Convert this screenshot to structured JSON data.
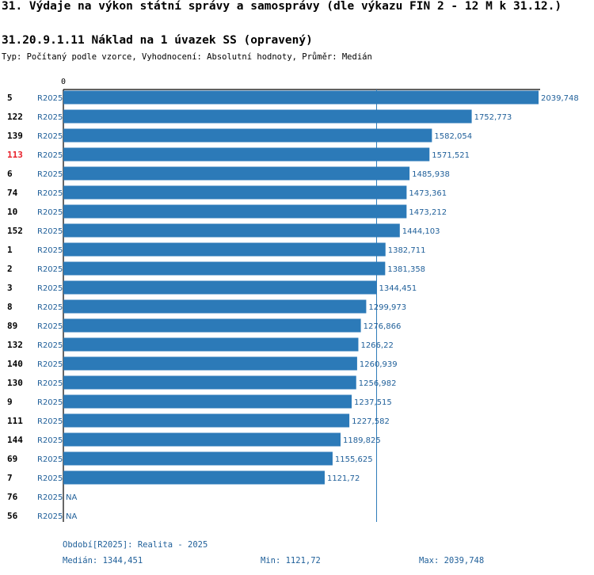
{
  "header": {
    "title": "31. Výdaje na výkon státní správy a samosprávy (dle výkazu FIN 2 - 12 M k 31.12.)",
    "indicator": "31.20.9.1.11 Náklad na 1 úvazek SS (opravený)",
    "subtitle": "Typ: Počítaný podle vzorce, Vyhodnocení: Absolutní hodnoty, Průměr: Medián"
  },
  "colors": {
    "bar": "#2c7ab8",
    "value_text": "#1f5f99",
    "highlight": "#e8202a",
    "axis": "#000000",
    "median_line": "#2c7ab8"
  },
  "chart_data": {
    "type": "bar",
    "orientation": "horizontal",
    "axis_zero_label": "0",
    "xlim": [
      0,
      2039.748
    ],
    "median": 1344.451,
    "highlight_category": "113",
    "categories": [
      "5",
      "122",
      "139",
      "113",
      "6",
      "74",
      "10",
      "152",
      "1",
      "2",
      "3",
      "8",
      "89",
      "132",
      "140",
      "130",
      "9",
      "111",
      "144",
      "69",
      "7",
      "76",
      "56"
    ],
    "period_labels": [
      "R2025",
      "R2025",
      "R2025",
      "R2025",
      "R2025",
      "R2025",
      "R2025",
      "R2025",
      "R2025",
      "R2025",
      "R2025",
      "R2025",
      "R2025",
      "R2025",
      "R2025",
      "R2025",
      "R2025",
      "R2025",
      "R2025",
      "R2025",
      "R2025",
      "R2025",
      "R2025"
    ],
    "values": [
      2039.748,
      1752.773,
      1582.054,
      1571.521,
      1485.938,
      1473.361,
      1473.212,
      1444.103,
      1382.711,
      1381.358,
      1344.451,
      1299.973,
      1276.866,
      1266.22,
      1260.939,
      1256.982,
      1237.515,
      1227.582,
      1189.825,
      1155.625,
      1121.72,
      null,
      null
    ],
    "value_labels": [
      "2039,748",
      "1752,773",
      "1582,054",
      "1571,521",
      "1485,938",
      "1473,361",
      "1473,212",
      "1444,103",
      "1382,711",
      "1381,358",
      "1344,451",
      "1299,973",
      "1276,866",
      "1266,22",
      "1260,939",
      "1256,982",
      "1237,515",
      "1227,582",
      "1189,825",
      "1155,625",
      "1121,72",
      "NA",
      "NA"
    ]
  },
  "footer": {
    "period": "Období[R2025]: Realita - 2025",
    "median": "Medián: 1344,451",
    "min": "Min: 1121,72",
    "max": "Max: 2039,748"
  }
}
